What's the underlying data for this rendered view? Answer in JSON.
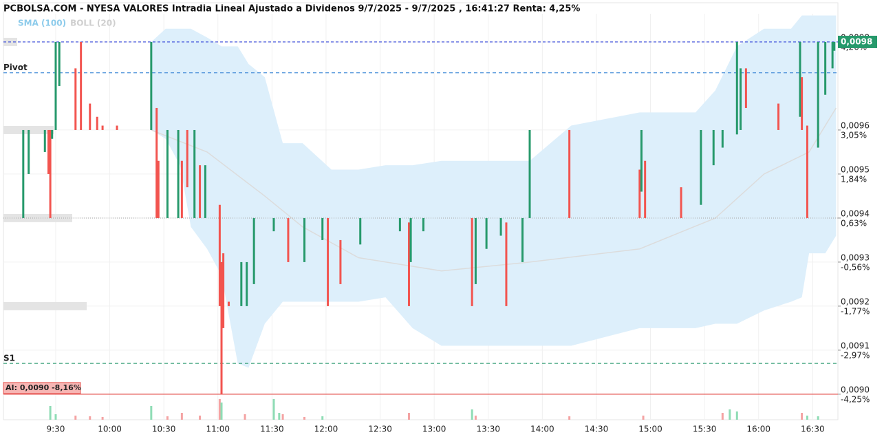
{
  "chart_data": {
    "type": "candlestick",
    "title": "PCBOLSA.COM - NYESA VALORES Intradia Lineal Ajustado a Dividenos 9/7/2025 - 9/7/2025 , 16:41:27 Renta: 4,25%",
    "legend": [
      {
        "name": "SMA (100)",
        "color": "#8ccbeb"
      },
      {
        "name": "BOLL (20)",
        "color": "#cfcfcf"
      }
    ],
    "xlim": [
      541,
      1004
    ],
    "xticks": [
      {
        "value": 570,
        "label": "9:30"
      },
      {
        "value": 600,
        "label": "10:00"
      },
      {
        "value": 630,
        "label": "10:30"
      },
      {
        "value": 660,
        "label": "11:00"
      },
      {
        "value": 690,
        "label": "11:30"
      },
      {
        "value": 720,
        "label": "12:00"
      },
      {
        "value": 750,
        "label": "12:30"
      },
      {
        "value": 780,
        "label": "13:00"
      },
      {
        "value": 810,
        "label": "13:30"
      },
      {
        "value": 840,
        "label": "14:00"
      },
      {
        "value": 870,
        "label": "14:30"
      },
      {
        "value": 900,
        "label": "15:00"
      },
      {
        "value": 930,
        "label": "15:30"
      },
      {
        "value": 960,
        "label": "16:00"
      },
      {
        "value": 990,
        "label": "16:30"
      }
    ],
    "ylim": [
      0.008942,
      0.009864
    ],
    "yticks": [
      {
        "value": 0.0098,
        "label": "0,0098"
      },
      {
        "value": 0.0096,
        "label": "0,0096"
      },
      {
        "value": 0.0095,
        "label": "0,0095"
      },
      {
        "value": 0.0094,
        "label": "0,0094"
      },
      {
        "value": 0.0093,
        "label": "0,0093"
      },
      {
        "value": 0.0092,
        "label": "0,0092"
      },
      {
        "value": 0.0091,
        "label": "0,0091"
      },
      {
        "value": 0.009,
        "label": "0,0090"
      }
    ],
    "pct_ticks": [
      {
        "value": 0.0098,
        "label": "4,26%"
      },
      {
        "value": 0.0096,
        "label": "3,05%"
      },
      {
        "value": 0.0095,
        "label": "1,84%"
      },
      {
        "value": 0.0094,
        "label": "0,63%"
      },
      {
        "value": 0.0093,
        "label": "-0,56%"
      },
      {
        "value": 0.0092,
        "label": "-1,77%"
      },
      {
        "value": 0.0091,
        "label": "-2,97%"
      },
      {
        "value": 0.009,
        "label": "-4,25%"
      }
    ],
    "grid": true,
    "up_color": "#26996b",
    "down_color": "#f2544f",
    "bars": {
      "x": [
        552,
        555,
        564,
        566,
        567,
        568,
        570,
        572,
        581,
        584,
        589,
        593,
        596,
        604,
        623,
        626,
        627,
        632,
        638,
        640,
        643,
        647,
        650,
        653,
        661,
        662,
        663,
        666,
        673,
        676,
        680,
        691,
        699,
        708,
        718,
        721,
        728,
        739,
        761,
        766,
        767,
        774,
        801,
        803,
        809,
        817,
        820,
        829,
        833,
        855,
        894,
        895,
        897,
        917,
        928,
        935,
        940,
        948,
        950,
        953,
        971,
        983,
        984,
        987,
        993,
        997,
        1001,
        1002
      ],
      "open": [
        0.0094,
        0.0095,
        0.00955,
        0.0096,
        0.0096,
        0.00958,
        0.0096,
        0.0097,
        0.00974,
        0.0098,
        0.00966,
        0.00963,
        0.00961,
        0.00961,
        0.0096,
        0.00965,
        0.00953,
        0.0094,
        0.0094,
        0.00953,
        0.0096,
        0.0094,
        0.00952,
        0.0094,
        0.00943,
        0.0093,
        0.00932,
        0.00921,
        0.0092,
        0.0092,
        0.00925,
        0.00937,
        0.0094,
        0.0093,
        0.00935,
        0.0094,
        0.00935,
        0.00934,
        0.00937,
        0.00939,
        0.0093,
        0.00937,
        0.0094,
        0.00925,
        0.00933,
        0.00936,
        0.00939,
        0.0093,
        0.0094,
        0.0096,
        0.00951,
        0.00946,
        0.00953,
        0.00947,
        0.00943,
        0.00952,
        0.00956,
        0.00959,
        0.0096,
        0.00974,
        0.00966,
        0.00963,
        0.00972,
        0.00961,
        0.00956,
        0.00968,
        0.00974,
        0.00978
      ],
      "close": [
        0.0096,
        0.0096,
        0.0096,
        0.0095,
        0.0094,
        0.0096,
        0.0098,
        0.0098,
        0.0096,
        0.0096,
        0.0096,
        0.0096,
        0.0096,
        0.0096,
        0.0098,
        0.0094,
        0.0094,
        0.0096,
        0.0096,
        0.0094,
        0.00947,
        0.0096,
        0.0094,
        0.00952,
        0.0092,
        0.009,
        0.00915,
        0.0092,
        0.0093,
        0.0093,
        0.0094,
        0.0094,
        0.0093,
        0.0094,
        0.0094,
        0.0092,
        0.00925,
        0.0094,
        0.0094,
        0.0092,
        0.0094,
        0.0094,
        0.0092,
        0.0094,
        0.0094,
        0.0094,
        0.0092,
        0.0094,
        0.0096,
        0.0094,
        0.0094,
        0.0096,
        0.0094,
        0.0094,
        0.0096,
        0.0096,
        0.0096,
        0.0098,
        0.00974,
        0.00965,
        0.0096,
        0.0098,
        0.0096,
        0.0094,
        0.0098,
        0.0098,
        0.0098,
        0.0098
      ]
    },
    "band": {
      "color": "#ddeffb",
      "x": [
        623,
        631,
        639,
        645,
        654,
        662,
        671,
        677,
        686,
        696,
        707,
        723,
        738,
        753,
        768,
        784,
        807,
        833,
        856,
        894,
        925,
        936,
        948,
        963,
        978,
        984,
        988,
        997,
        1003
      ],
      "upper": [
        0.0098,
        0.00983,
        0.00983,
        0.00983,
        0.00981,
        0.00979,
        0.00979,
        0.00975,
        0.00972,
        0.00957,
        0.00957,
        0.00951,
        0.00951,
        0.00952,
        0.00952,
        0.00953,
        0.00953,
        0.00953,
        0.00961,
        0.00964,
        0.00964,
        0.00969,
        0.00979,
        0.00983,
        0.00983,
        0.00986,
        0.00986,
        0.00986,
        0.00986
      ],
      "lower": [
        0.0096,
        0.00958,
        0.00952,
        0.00938,
        0.00933,
        0.00927,
        0.00907,
        0.00906,
        0.00916,
        0.00921,
        0.00921,
        0.00921,
        0.00921,
        0.00922,
        0.00915,
        0.00911,
        0.00911,
        0.00911,
        0.00911,
        0.00915,
        0.00915,
        0.00916,
        0.00916,
        0.00919,
        0.00921,
        0.00922,
        0.00932,
        0.00932,
        0.00936
      ]
    },
    "middle": {
      "color": "#dcdcdc",
      "x": [
        623,
        654,
        686,
        707,
        738,
        784,
        833,
        894,
        936,
        963,
        988,
        1003
      ],
      "values": [
        0.0096,
        0.00955,
        0.00945,
        0.00938,
        0.00931,
        0.00928,
        0.0093,
        0.00933,
        0.0094,
        0.0095,
        0.00955,
        0.00965
      ]
    },
    "levels": [
      {
        "value": 0.0098,
        "color": "#3446d8",
        "dash": "4,3"
      },
      {
        "value": 0.00973,
        "color": "#4a90d9",
        "dash": "5,4",
        "label": "Pivot"
      },
      {
        "value": 0.0094,
        "color": "#aaaaaa",
        "dash": "1,2"
      },
      {
        "value": 0.00907,
        "color": "#3aa07a",
        "dash": "5,4",
        "label": "S1"
      },
      {
        "value": 0.009,
        "color": "#e5534f",
        "dash": "none",
        "label": "AI: 0,0090  -8,16%"
      }
    ],
    "last_price": {
      "value": 0.0098,
      "label": "0,0098",
      "color": "#26996b"
    },
    "price_profile": {
      "color": "#e4e4e4",
      "prices": [
        0.0098,
        0.0096,
        0.0094,
        0.0092
      ],
      "values": [
        20,
        73,
        100,
        121
      ]
    },
    "volume": {
      "x": [
        567,
        570,
        581,
        589,
        596,
        623,
        632,
        640,
        650,
        661,
        662,
        675,
        691,
        694,
        696,
        708,
        718,
        766,
        801,
        803,
        855,
        896,
        940,
        944,
        948,
        984,
        987,
        993
      ],
      "values": [
        20,
        8,
        6,
        5,
        4,
        20,
        5,
        10,
        6,
        30,
        25,
        8,
        30,
        10,
        8,
        4,
        5,
        10,
        15,
        6,
        5,
        6,
        10,
        15,
        12,
        10,
        6,
        5
      ],
      "colors": [
        "#8fdcb5",
        "#8fdcb5",
        "#f4a3a3",
        "#f4a3a3",
        "#f4a3a3",
        "#8fdcb5",
        "#f4a3a3",
        "#f4a3a3",
        "#f4a3a3",
        "#f4a3a3",
        "#8fdcb5",
        "#f4a3a3",
        "#8fdcb5",
        "#8fdcb5",
        "#f4a3a3",
        "#f4a3a3",
        "#8fdcb5",
        "#f4a3a3",
        "#8fdcb5",
        "#f4a3a3",
        "#f4a3a3",
        "#f4a3a3",
        "#f4a3a3",
        "#8fdcb5",
        "#8fdcb5",
        "#f4a3a3",
        "#8fdcb5",
        "#8fdcb5"
      ]
    }
  }
}
